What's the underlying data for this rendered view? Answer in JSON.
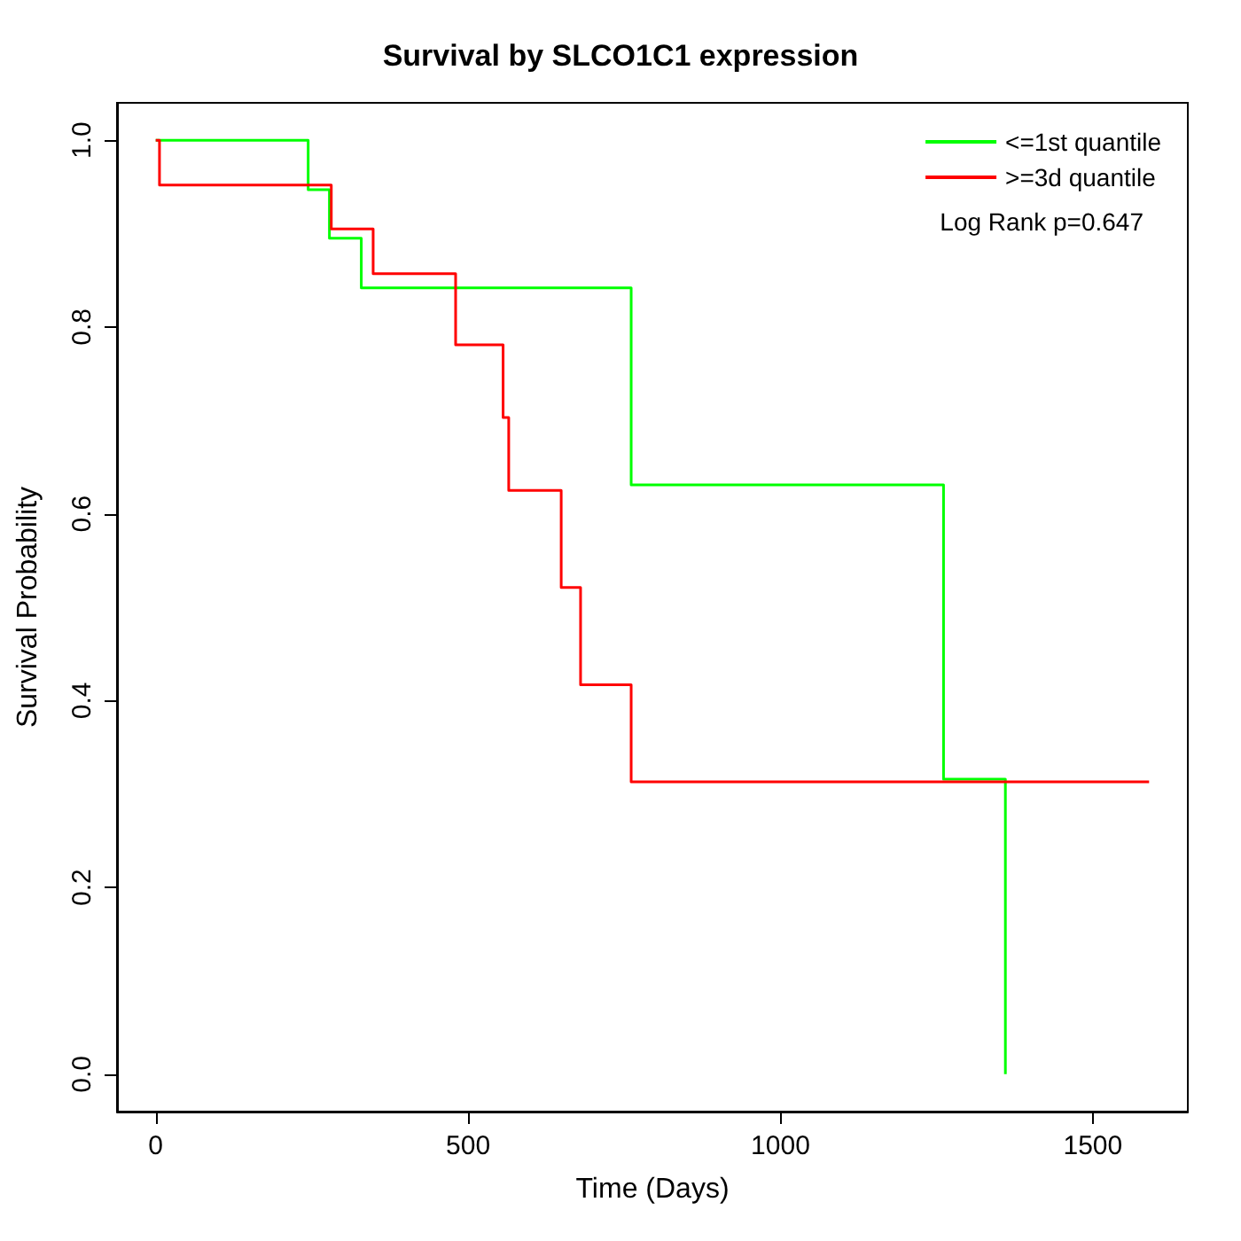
{
  "chart_data": {
    "type": "step",
    "title": "Survival by SLCO1C1 expression",
    "xlabel": "Time (Days)",
    "ylabel": "Survival Probability",
    "xlim": [
      -62,
      1652
    ],
    "ylim": [
      -0.04,
      1.04
    ],
    "xticks": [
      0,
      500,
      1000,
      1500
    ],
    "yticks": [
      {
        "value": 0,
        "label": "0.0"
      },
      0.2,
      0.4,
      0.6,
      0.8,
      {
        "value": 1,
        "label": "1.0"
      }
    ],
    "series": [
      {
        "name": "<=1st quantile",
        "color": "#00ff00",
        "x": [
          0,
          244,
          278,
          329,
          761,
          1261,
          1360
        ],
        "values": [
          1.0,
          0.947,
          0.895,
          0.842,
          0.631,
          0.316,
          0.0
        ]
      },
      {
        "name": ">=3d quantile",
        "color": "#ff0000",
        "x": [
          0,
          6,
          281,
          348,
          480,
          556,
          565,
          649,
          680,
          761,
          1590
        ],
        "values": [
          1.0,
          0.952,
          0.905,
          0.857,
          0.781,
          0.703,
          0.625,
          0.521,
          0.417,
          0.313,
          0.313
        ]
      }
    ],
    "annotations": [
      "Log Rank p=0.647"
    ],
    "legend": "top right",
    "grid": false
  }
}
